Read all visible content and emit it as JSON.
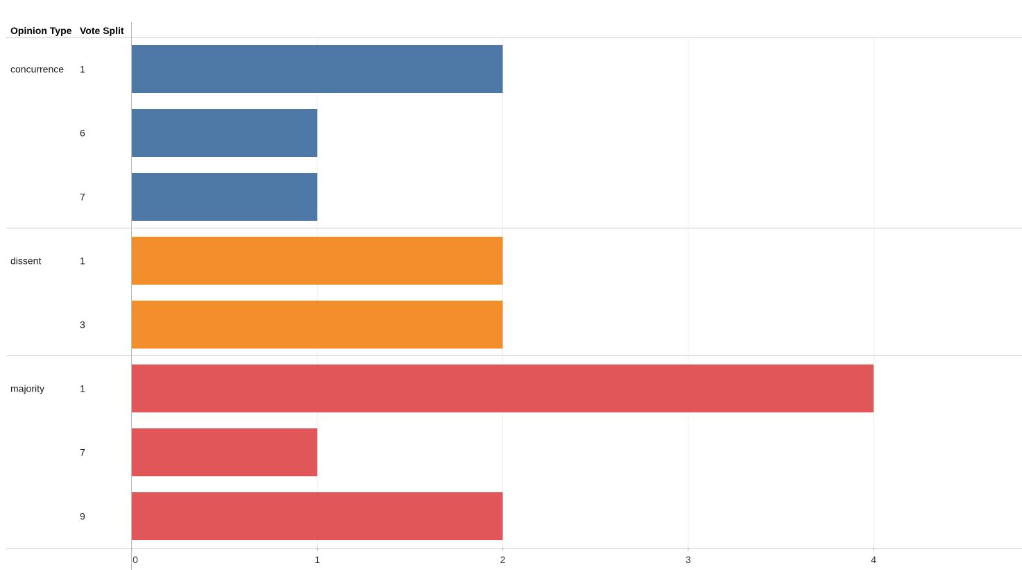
{
  "colors": {
    "concurrence": "#4e79a7",
    "dissent": "#f28e2b",
    "majority": "#e15759",
    "grid": "#eeeeee",
    "separator": "#cccccc",
    "axis": "#bbbbbb"
  },
  "chart_data": {
    "type": "bar",
    "orientation": "horizontal",
    "row_headers": [
      "Opinion Type",
      "Vote Split"
    ],
    "x_ticks": [
      0,
      1,
      2,
      3,
      4
    ],
    "xlim": [
      0,
      4.8
    ],
    "xlabel": "",
    "grid": true,
    "groups": [
      {
        "name": "concurrence",
        "color_key": "concurrence",
        "bars": [
          {
            "category": "1",
            "value": 2
          },
          {
            "category": "6",
            "value": 1
          },
          {
            "category": "7",
            "value": 1
          }
        ]
      },
      {
        "name": "dissent",
        "color_key": "dissent",
        "bars": [
          {
            "category": "1",
            "value": 2
          },
          {
            "category": "3",
            "value": 2
          }
        ]
      },
      {
        "name": "majority",
        "color_key": "majority",
        "bars": [
          {
            "category": "1",
            "value": 4
          },
          {
            "category": "7",
            "value": 1
          },
          {
            "category": "9",
            "value": 2
          }
        ]
      }
    ]
  }
}
